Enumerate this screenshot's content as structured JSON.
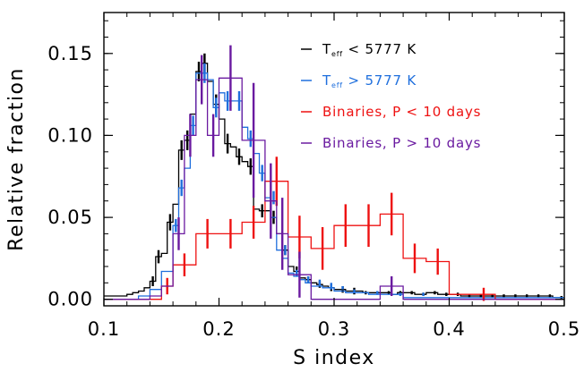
{
  "chart_data": {
    "type": "line",
    "title": "",
    "xlabel": "S index",
    "ylabel": "Relative fraction",
    "xlim": [
      0.1,
      0.5
    ],
    "ylim": [
      -0.004,
      0.175
    ],
    "x_ticks": [
      "0.1",
      "0.2",
      "0.3",
      "0.4",
      "0.5"
    ],
    "x_tick_values": [
      0.1,
      0.2,
      0.3,
      0.4,
      0.5
    ],
    "y_ticks": [
      "0.00",
      "0.05",
      "0.10",
      "0.15"
    ],
    "y_tick_values": [
      0.0,
      0.05,
      0.1,
      0.15
    ],
    "grid": false,
    "legend_position": "top-right",
    "legend": [
      {
        "label_main": "T",
        "label_sub": "eff",
        "label_rest": " < 5777 K",
        "color": "#000000"
      },
      {
        "label_main": "T",
        "label_sub": "eff",
        "label_rest": " > 5777 K",
        "color": "#1f6fdd"
      },
      {
        "label_main": "Binaries, P < 10 days",
        "label_sub": "",
        "label_rest": "",
        "color": "#ee1111"
      },
      {
        "label_main": "Binaries, P > 10 days",
        "label_sub": "",
        "label_rest": "",
        "color": "#6a1aa0"
      }
    ],
    "series": [
      {
        "color": "#000000",
        "bins": [
          [
            0.1,
            0.105,
            0.002
          ],
          [
            0.105,
            0.11,
            0.002
          ],
          [
            0.11,
            0.115,
            0.002
          ],
          [
            0.115,
            0.12,
            0.002
          ],
          [
            0.12,
            0.125,
            0.003
          ],
          [
            0.125,
            0.13,
            0.004
          ],
          [
            0.13,
            0.135,
            0.005
          ],
          [
            0.135,
            0.14,
            0.007
          ],
          [
            0.14,
            0.145,
            0.011
          ],
          [
            0.145,
            0.15,
            0.026
          ],
          [
            0.15,
            0.155,
            0.028
          ],
          [
            0.155,
            0.16,
            0.047
          ],
          [
            0.16,
            0.165,
            0.058
          ],
          [
            0.165,
            0.17,
            0.091
          ],
          [
            0.17,
            0.175,
            0.097
          ],
          [
            0.175,
            0.18,
            0.113
          ],
          [
            0.18,
            0.185,
            0.139
          ],
          [
            0.185,
            0.19,
            0.144
          ],
          [
            0.19,
            0.195,
            0.133
          ],
          [
            0.195,
            0.2,
            0.119
          ],
          [
            0.2,
            0.205,
            0.11
          ],
          [
            0.205,
            0.21,
            0.095
          ],
          [
            0.21,
            0.215,
            0.093
          ],
          [
            0.215,
            0.22,
            0.087
          ],
          [
            0.22,
            0.225,
            0.084
          ],
          [
            0.225,
            0.23,
            0.081
          ],
          [
            0.23,
            0.235,
            0.055
          ],
          [
            0.235,
            0.24,
            0.054
          ],
          [
            0.24,
            0.245,
            0.054
          ],
          [
            0.245,
            0.25,
            0.05
          ],
          [
            0.25,
            0.255,
            0.04
          ],
          [
            0.255,
            0.26,
            0.03
          ],
          [
            0.26,
            0.265,
            0.02
          ],
          [
            0.265,
            0.27,
            0.017
          ],
          [
            0.27,
            0.275,
            0.013
          ],
          [
            0.275,
            0.28,
            0.012
          ],
          [
            0.28,
            0.285,
            0.01
          ],
          [
            0.285,
            0.29,
            0.009
          ],
          [
            0.29,
            0.295,
            0.008
          ],
          [
            0.295,
            0.3,
            0.007
          ],
          [
            0.3,
            0.305,
            0.006
          ],
          [
            0.305,
            0.31,
            0.006
          ],
          [
            0.31,
            0.315,
            0.005
          ],
          [
            0.315,
            0.32,
            0.005
          ],
          [
            0.32,
            0.325,
            0.005
          ],
          [
            0.325,
            0.33,
            0.004
          ],
          [
            0.33,
            0.335,
            0.004
          ],
          [
            0.335,
            0.34,
            0.004
          ],
          [
            0.34,
            0.345,
            0.004
          ],
          [
            0.345,
            0.35,
            0.004
          ],
          [
            0.35,
            0.355,
            0.003
          ],
          [
            0.355,
            0.36,
            0.004
          ],
          [
            0.36,
            0.365,
            0.004
          ],
          [
            0.365,
            0.37,
            0.004
          ],
          [
            0.37,
            0.375,
            0.003
          ],
          [
            0.375,
            0.38,
            0.003
          ],
          [
            0.38,
            0.385,
            0.004
          ],
          [
            0.385,
            0.39,
            0.004
          ],
          [
            0.39,
            0.395,
            0.003
          ],
          [
            0.395,
            0.4,
            0.003
          ],
          [
            0.4,
            0.405,
            0.003
          ],
          [
            0.405,
            0.41,
            0.003
          ],
          [
            0.41,
            0.415,
            0.002
          ],
          [
            0.415,
            0.42,
            0.002
          ],
          [
            0.42,
            0.425,
            0.002
          ],
          [
            0.425,
            0.43,
            0.002
          ],
          [
            0.43,
            0.435,
            0.002
          ],
          [
            0.435,
            0.44,
            0.002
          ],
          [
            0.44,
            0.445,
            0.002
          ],
          [
            0.445,
            0.45,
            0.002
          ],
          [
            0.45,
            0.455,
            0.002
          ],
          [
            0.455,
            0.46,
            0.002
          ],
          [
            0.46,
            0.465,
            0.002
          ],
          [
            0.465,
            0.47,
            0.002
          ],
          [
            0.47,
            0.475,
            0.002
          ],
          [
            0.475,
            0.48,
            0.002
          ],
          [
            0.48,
            0.485,
            0.002
          ],
          [
            0.485,
            0.49,
            0.002
          ],
          [
            0.49,
            0.495,
            0.001
          ],
          [
            0.495,
            0.5,
            0.001
          ]
        ],
        "errors": [
          [
            0.1425,
            0.011,
            0.003
          ],
          [
            0.1475,
            0.026,
            0.004
          ],
          [
            0.1575,
            0.047,
            0.005
          ],
          [
            0.1675,
            0.091,
            0.006
          ],
          [
            0.1725,
            0.097,
            0.006
          ],
          [
            0.1825,
            0.139,
            0.006
          ],
          [
            0.1875,
            0.144,
            0.006
          ],
          [
            0.1975,
            0.119,
            0.006
          ],
          [
            0.2075,
            0.095,
            0.006
          ],
          [
            0.2175,
            0.087,
            0.005
          ],
          [
            0.2275,
            0.081,
            0.005
          ],
          [
            0.2375,
            0.054,
            0.004
          ],
          [
            0.2475,
            0.05,
            0.004
          ],
          [
            0.2575,
            0.03,
            0.003
          ],
          [
            0.2675,
            0.017,
            0.003
          ],
          [
            0.2775,
            0.012,
            0.002
          ],
          [
            0.2875,
            0.009,
            0.002
          ],
          [
            0.2975,
            0.007,
            0.002
          ],
          [
            0.3075,
            0.006,
            0.002
          ],
          [
            0.3175,
            0.005,
            0.002
          ],
          [
            0.3275,
            0.004,
            0.001
          ],
          [
            0.3375,
            0.004,
            0.001
          ],
          [
            0.3475,
            0.004,
            0.001
          ],
          [
            0.3575,
            0.004,
            0.001
          ],
          [
            0.3675,
            0.004,
            0.001
          ],
          [
            0.3775,
            0.003,
            0.001
          ],
          [
            0.3875,
            0.004,
            0.001
          ],
          [
            0.3975,
            0.003,
            0.001
          ],
          [
            0.4075,
            0.003,
            0.001
          ],
          [
            0.4175,
            0.002,
            0.001
          ],
          [
            0.4275,
            0.002,
            0.001
          ],
          [
            0.4375,
            0.002,
            0.001
          ],
          [
            0.4475,
            0.002,
            0.001
          ],
          [
            0.4575,
            0.002,
            0.001
          ],
          [
            0.4675,
            0.002,
            0.001
          ],
          [
            0.4775,
            0.002,
            0.001
          ],
          [
            0.4875,
            0.002,
            0.001
          ],
          [
            0.4975,
            0.001,
            0.001
          ]
        ]
      },
      {
        "color": "#1f6fdd",
        "bins": [
          [
            0.1,
            0.13,
            0.0
          ],
          [
            0.13,
            0.14,
            0.002
          ],
          [
            0.14,
            0.15,
            0.006
          ],
          [
            0.15,
            0.16,
            0.017
          ],
          [
            0.16,
            0.165,
            0.045
          ],
          [
            0.165,
            0.17,
            0.068
          ],
          [
            0.17,
            0.175,
            0.08
          ],
          [
            0.175,
            0.18,
            0.106
          ],
          [
            0.18,
            0.185,
            0.138
          ],
          [
            0.185,
            0.19,
            0.138
          ],
          [
            0.19,
            0.195,
            0.134
          ],
          [
            0.195,
            0.2,
            0.117
          ],
          [
            0.2,
            0.205,
            0.126
          ],
          [
            0.205,
            0.21,
            0.121
          ],
          [
            0.21,
            0.215,
            0.121
          ],
          [
            0.215,
            0.22,
            0.121
          ],
          [
            0.22,
            0.225,
            0.105
          ],
          [
            0.225,
            0.23,
            0.098
          ],
          [
            0.23,
            0.235,
            0.089
          ],
          [
            0.235,
            0.24,
            0.077
          ],
          [
            0.24,
            0.245,
            0.062
          ],
          [
            0.245,
            0.25,
            0.05
          ],
          [
            0.25,
            0.255,
            0.03
          ],
          [
            0.255,
            0.26,
            0.025
          ],
          [
            0.26,
            0.265,
            0.016
          ],
          [
            0.265,
            0.27,
            0.014
          ],
          [
            0.27,
            0.275,
            0.012
          ],
          [
            0.275,
            0.28,
            0.01
          ],
          [
            0.28,
            0.29,
            0.008
          ],
          [
            0.29,
            0.3,
            0.007
          ],
          [
            0.3,
            0.31,
            0.005
          ],
          [
            0.31,
            0.33,
            0.004
          ],
          [
            0.33,
            0.36,
            0.003
          ],
          [
            0.36,
            0.5,
            0.001
          ]
        ],
        "errors": [
          [
            0.1625,
            0.045,
            0.004
          ],
          [
            0.1675,
            0.068,
            0.005
          ],
          [
            0.1775,
            0.106,
            0.006
          ],
          [
            0.1875,
            0.138,
            0.006
          ],
          [
            0.1975,
            0.117,
            0.006
          ],
          [
            0.2075,
            0.121,
            0.006
          ],
          [
            0.2175,
            0.121,
            0.006
          ],
          [
            0.2275,
            0.098,
            0.005
          ],
          [
            0.2375,
            0.077,
            0.005
          ],
          [
            0.2475,
            0.062,
            0.004
          ],
          [
            0.2575,
            0.03,
            0.003
          ],
          [
            0.2675,
            0.016,
            0.002
          ],
          [
            0.2775,
            0.012,
            0.002
          ],
          [
            0.2875,
            0.01,
            0.002
          ],
          [
            0.2975,
            0.008,
            0.002
          ],
          [
            0.3075,
            0.007,
            0.001
          ],
          [
            0.3175,
            0.005,
            0.001
          ],
          [
            0.3375,
            0.004,
            0.001
          ],
          [
            0.3575,
            0.003,
            0.001
          ],
          [
            0.3775,
            0.003,
            0.001
          ]
        ]
      },
      {
        "color": "#ee1111",
        "bins": [
          [
            0.1,
            0.15,
            0.0
          ],
          [
            0.15,
            0.16,
            0.008
          ],
          [
            0.16,
            0.18,
            0.021
          ],
          [
            0.18,
            0.2,
            0.04
          ],
          [
            0.2,
            0.22,
            0.04
          ],
          [
            0.22,
            0.24,
            0.047
          ],
          [
            0.24,
            0.26,
            0.072
          ],
          [
            0.26,
            0.28,
            0.038
          ],
          [
            0.28,
            0.3,
            0.031
          ],
          [
            0.3,
            0.32,
            0.045
          ],
          [
            0.32,
            0.34,
            0.045
          ],
          [
            0.34,
            0.36,
            0.052
          ],
          [
            0.36,
            0.38,
            0.025
          ],
          [
            0.38,
            0.4,
            0.023
          ],
          [
            0.4,
            0.44,
            0.003
          ],
          [
            0.44,
            0.5,
            0.0
          ]
        ],
        "errors": [
          [
            0.155,
            0.008,
            0.005
          ],
          [
            0.17,
            0.021,
            0.007
          ],
          [
            0.19,
            0.04,
            0.009
          ],
          [
            0.21,
            0.04,
            0.009
          ],
          [
            0.23,
            0.047,
            0.01
          ],
          [
            0.25,
            0.072,
            0.015
          ],
          [
            0.27,
            0.038,
            0.013
          ],
          [
            0.29,
            0.031,
            0.013
          ],
          [
            0.31,
            0.045,
            0.013
          ],
          [
            0.33,
            0.045,
            0.013
          ],
          [
            0.35,
            0.052,
            0.013
          ],
          [
            0.37,
            0.025,
            0.009
          ],
          [
            0.39,
            0.023,
            0.008
          ],
          [
            0.43,
            0.003,
            0.004
          ]
        ]
      },
      {
        "color": "#6a1aa0",
        "bins": [
          [
            0.1,
            0.14,
            0.0
          ],
          [
            0.14,
            0.15,
            0.002
          ],
          [
            0.15,
            0.16,
            0.008
          ],
          [
            0.16,
            0.17,
            0.04
          ],
          [
            0.17,
            0.18,
            0.1
          ],
          [
            0.18,
            0.19,
            0.134
          ],
          [
            0.19,
            0.2,
            0.1
          ],
          [
            0.2,
            0.22,
            0.135
          ],
          [
            0.22,
            0.24,
            0.097
          ],
          [
            0.24,
            0.25,
            0.06
          ],
          [
            0.25,
            0.26,
            0.04
          ],
          [
            0.26,
            0.28,
            0.015
          ],
          [
            0.28,
            0.34,
            0.0
          ],
          [
            0.34,
            0.36,
            0.008
          ],
          [
            0.36,
            0.5,
            0.0
          ]
        ],
        "errors": [
          [
            0.165,
            0.04,
            0.01
          ],
          [
            0.175,
            0.1,
            0.013
          ],
          [
            0.185,
            0.134,
            0.015
          ],
          [
            0.195,
            0.1,
            0.013
          ],
          [
            0.21,
            0.135,
            0.02
          ],
          [
            0.23,
            0.097,
            0.035
          ],
          [
            0.245,
            0.06,
            0.023
          ],
          [
            0.255,
            0.04,
            0.022
          ],
          [
            0.27,
            0.015,
            0.014
          ],
          [
            0.35,
            0.008,
            0.006
          ]
        ]
      }
    ]
  }
}
